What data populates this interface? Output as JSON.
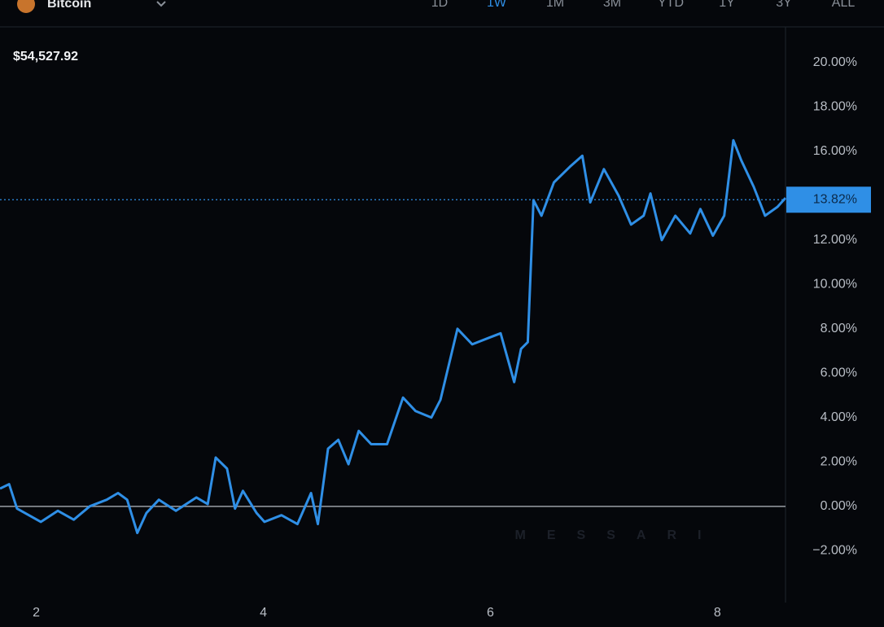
{
  "header": {
    "asset": "Bitcoin",
    "price": "$54,527.92",
    "timeframes": [
      "1D",
      "1W",
      "1M",
      "3M",
      "YTD",
      "1Y",
      "3Y",
      "ALL"
    ],
    "active_timeframe": "1W"
  },
  "chart_data": {
    "type": "line",
    "color": "#2f8fe6",
    "watermark": "MESSARI",
    "x": [
      1.68,
      1.76,
      1.83,
      2.04,
      2.19,
      2.33,
      2.47,
      2.62,
      2.72,
      2.8,
      2.89,
      2.97,
      3.08,
      3.23,
      3.41,
      3.51,
      3.58,
      3.68,
      3.75,
      3.82,
      3.94,
      4.01,
      4.16,
      4.3,
      4.42,
      4.48,
      4.57,
      4.66,
      4.75,
      4.84,
      4.95,
      5.09,
      5.23,
      5.34,
      5.48,
      5.56,
      5.71,
      5.84,
      5.99,
      6.09,
      6.21,
      6.27,
      6.33,
      6.38,
      6.45,
      6.56,
      6.7,
      6.81,
      6.88,
      7.0,
      7.13,
      7.24,
      7.35,
      7.41,
      7.51,
      7.63,
      7.76,
      7.85,
      7.96,
      8.06,
      8.14,
      8.21,
      8.32,
      8.42,
      8.53,
      8.6
    ],
    "values": [
      0.8,
      1.0,
      -0.1,
      -0.7,
      -0.2,
      -0.6,
      0,
      0.3,
      0.6,
      0.3,
      -1.2,
      -0.3,
      0.3,
      -0.2,
      0.4,
      0.1,
      2.2,
      1.7,
      -0.1,
      0.7,
      -0.3,
      -0.7,
      -0.4,
      -0.8,
      0.6,
      -0.8,
      2.6,
      3.0,
      1.9,
      3.4,
      2.8,
      2.8,
      4.9,
      4.3,
      4.0,
      4.8,
      8.0,
      7.3,
      7.6,
      7.8,
      5.6,
      7.1,
      7.4,
      13.8,
      13.1,
      14.6,
      15.3,
      15.8,
      13.7,
      15.2,
      14.0,
      12.7,
      13.1,
      14.1,
      12.0,
      13.1,
      12.3,
      13.4,
      12.2,
      13.1,
      16.5,
      15.6,
      14.4,
      13.1,
      13.5,
      13.9
    ],
    "xlim": [
      1.68,
      8.6
    ],
    "xticks": [
      2,
      4,
      6,
      8
    ],
    "ylim": [
      -4.3,
      21.5
    ],
    "yticks": [
      {
        "value": -2,
        "label": "−2.00%"
      },
      {
        "value": 0,
        "label": "0.00%"
      },
      {
        "value": 2,
        "label": "2.00%"
      },
      {
        "value": 4,
        "label": "4.00%"
      },
      {
        "value": 6,
        "label": "6.00%"
      },
      {
        "value": 8,
        "label": "8.00%"
      },
      {
        "value": 10,
        "label": "10.00%"
      },
      {
        "value": 12,
        "label": "12.00%"
      },
      {
        "value": 14,
        "label": "14.00%"
      },
      {
        "value": 16,
        "label": "16.00%"
      },
      {
        "value": 18,
        "label": "18.00%"
      },
      {
        "value": 20,
        "label": "20.00%"
      }
    ],
    "last_value": {
      "value": 13.82,
      "label": "13.82%"
    }
  }
}
